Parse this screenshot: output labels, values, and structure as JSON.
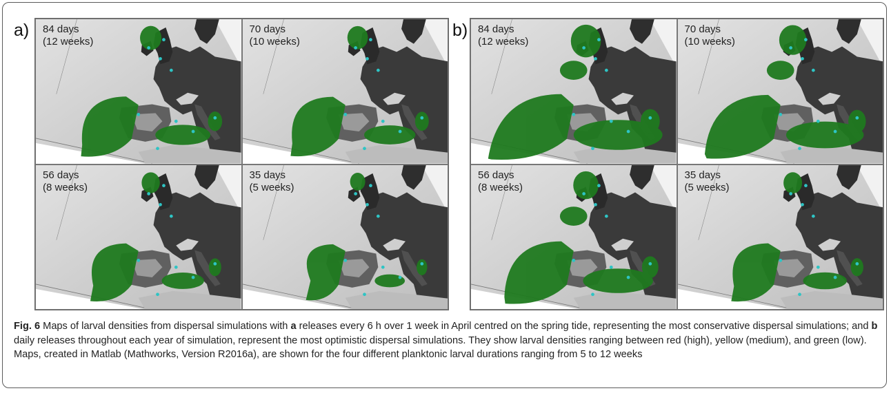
{
  "panels": [
    {
      "label": "a)",
      "maps": [
        {
          "days": "84 days",
          "weeks": "(12 weeks)",
          "spread": 0.55
        },
        {
          "days": "70 days",
          "weeks": "(10 weeks)",
          "spread": 0.5
        },
        {
          "days": "56 days",
          "weeks": "(8 weeks)",
          "spread": 0.38
        },
        {
          "days": "35 days",
          "weeks": "(5 weeks)",
          "spread": 0.22
        }
      ]
    },
    {
      "label": "b)",
      "maps": [
        {
          "days": "84 days",
          "weeks": "(12 weeks)",
          "spread": 1.0
        },
        {
          "days": "70 days",
          "weeks": "(10 weeks)",
          "spread": 0.85
        },
        {
          "days": "56 days",
          "weeks": "(8 weeks)",
          "spread": 0.75
        },
        {
          "days": "35 days",
          "weeks": "(5 weeks)",
          "spread": 0.4
        }
      ]
    }
  ],
  "caption": {
    "fig_label": "Fig. 6",
    "t1": " Maps of larval densities from dispersal simulations with ",
    "a": "a",
    "t2": " releases every 6 h over 1 week in April centred on the spring tide, representing the most conservative dispersal simulations; and ",
    "b": "b",
    "t3": " daily releases throughout each year of simulation, represent the most optimistic dispersal simulations. They show larval densities ranging between red (high), yellow (medium), and green (low). Maps, created in Matlab (Mathworks, Version R2016a), are shown for the four different planktonic larval durations ranging from 5 to 12 weeks"
  },
  "colors": {
    "larvae_low": "#1f7a1f",
    "larvae_dark": "#166016",
    "release_site": "#2ec4c4",
    "sea_light": "#d4d4d4",
    "land_dark": "#3a3a3a"
  }
}
